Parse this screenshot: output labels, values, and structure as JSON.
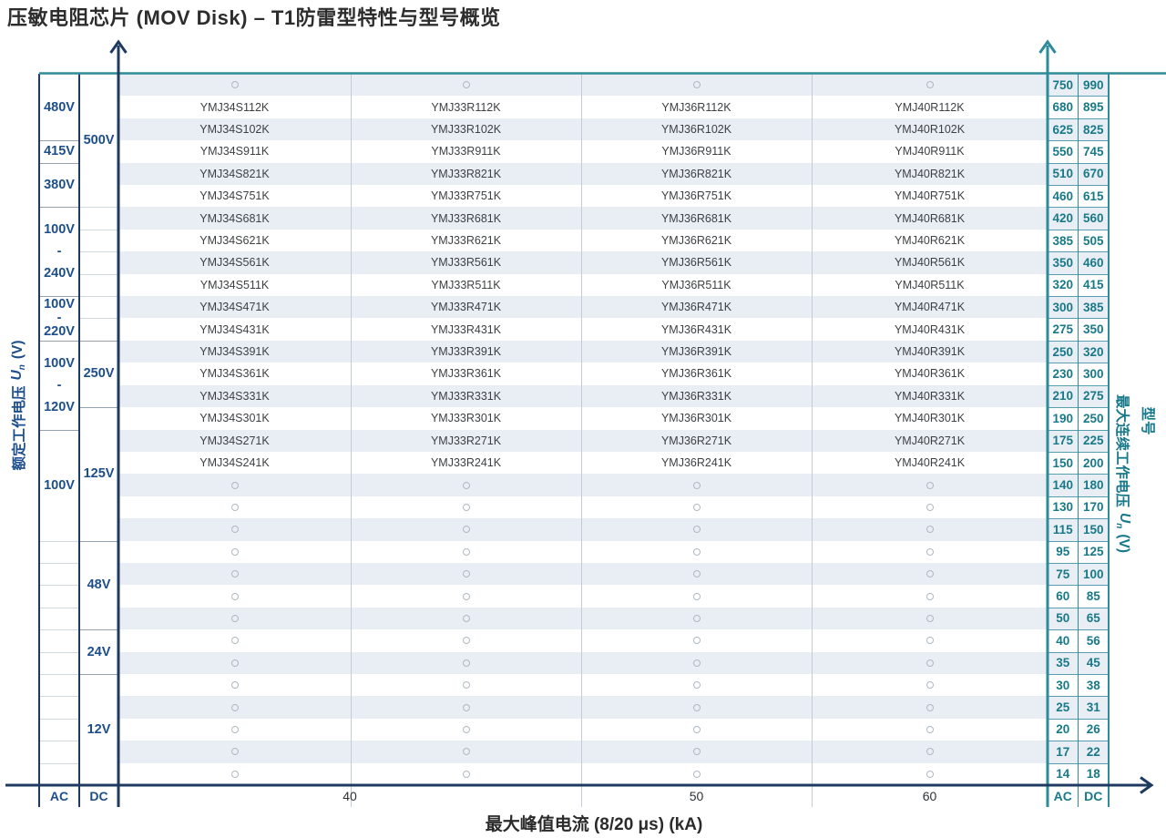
{
  "chart_data": {
    "type": "table",
    "title": "压敏电阻芯片 (MOV Disk) – T1防雷型特性与型号概览",
    "model_label": "型号",
    "left_axis_label": {
      "cn": "额定工作电压",
      "sym": "U",
      "sub": "n",
      "unit": "(V)"
    },
    "right_axis_label": {
      "cn": "最大连续工作电压",
      "sym": "U",
      "sub": "n",
      "unit": "(V)"
    },
    "x_axis": {
      "label": "最大峰值电流 (8/20 μs) (kA)",
      "ticks": [
        {
          "label": "40",
          "cols": [
            0,
            1
          ]
        },
        {
          "label": "50",
          "cols": [
            2,
            2
          ]
        },
        {
          "label": "60",
          "cols": [
            3,
            3
          ]
        }
      ]
    },
    "footer": {
      "ac": "AC",
      "dc": "DC"
    },
    "columns": [
      {
        "prefix": "YMJ34S",
        "peak_kA": 40
      },
      {
        "prefix": "YMJ33R",
        "peak_kA": 40
      },
      {
        "prefix": "YMJ36R",
        "peak_kA": 50
      },
      {
        "prefix": "YMJ40R",
        "peak_kA": 60
      }
    ],
    "left_axis": {
      "ac_cells": [
        {
          "lines": [
            "480V"
          ],
          "from": 0,
          "to": 2
        },
        {
          "lines": [
            "415V"
          ],
          "from": 3,
          "to": 3
        },
        {
          "lines": [
            "380V"
          ],
          "from": 4,
          "to": 5
        },
        {
          "lines": [
            "100V",
            "-",
            "240V"
          ],
          "from": 6,
          "to": 9
        },
        {
          "lines": [
            "100V",
            "-",
            "220V"
          ],
          "from": 10,
          "to": 11
        },
        {
          "lines": [
            "100V",
            "-",
            "120V"
          ],
          "from": 12,
          "to": 15
        },
        {
          "lines": [
            "100V"
          ],
          "from": 16,
          "to": 20
        },
        {
          "lines": [],
          "from": 21,
          "to": 21
        },
        {
          "lines": [],
          "from": 22,
          "to": 22
        },
        {
          "lines": [],
          "from": 23,
          "to": 23
        },
        {
          "lines": [],
          "from": 24,
          "to": 24
        },
        {
          "lines": [],
          "from": 25,
          "to": 25
        },
        {
          "lines": [],
          "from": 26,
          "to": 26
        },
        {
          "lines": [],
          "from": 27,
          "to": 27
        },
        {
          "lines": [],
          "from": 28,
          "to": 28
        },
        {
          "lines": [],
          "from": 29,
          "to": 29
        },
        {
          "lines": [],
          "from": 30,
          "to": 30
        },
        {
          "lines": [],
          "from": 31,
          "to": 31
        }
      ],
      "dc_cells": [
        {
          "lines": [
            "500V"
          ],
          "from": 0,
          "to": 5
        },
        {
          "lines": [],
          "from": 6,
          "to": 6
        },
        {
          "lines": [],
          "from": 7,
          "to": 7
        },
        {
          "lines": [],
          "from": 8,
          "to": 8
        },
        {
          "lines": [],
          "from": 9,
          "to": 9
        },
        {
          "lines": [],
          "from": 10,
          "to": 10
        },
        {
          "lines": [],
          "from": 11,
          "to": 11
        },
        {
          "lines": [
            "250V"
          ],
          "from": 12,
          "to": 14
        },
        {
          "lines": [
            "125V"
          ],
          "from": 15,
          "to": 20
        },
        {
          "lines": [
            "48V"
          ],
          "from": 21,
          "to": 24
        },
        {
          "lines": [
            "24V"
          ],
          "from": 25,
          "to": 26
        },
        {
          "lines": [
            "12V"
          ],
          "from": 27,
          "to": 31
        }
      ]
    },
    "rows": [
      {
        "ac": "750",
        "dc": "990",
        "parts": null
      },
      {
        "ac": "680",
        "dc": "895",
        "parts": [
          "YMJ34S112K",
          "YMJ33R112K",
          "YMJ36R112K",
          "YMJ40R112K"
        ]
      },
      {
        "ac": "625",
        "dc": "825",
        "parts": [
          "YMJ34S102K",
          "YMJ33R102K",
          "YMJ36R102K",
          "YMJ40R102K"
        ]
      },
      {
        "ac": "550",
        "dc": "745",
        "parts": [
          "YMJ34S911K",
          "YMJ33R911K",
          "YMJ36R911K",
          "YMJ40R911K"
        ]
      },
      {
        "ac": "510",
        "dc": "670",
        "parts": [
          "YMJ34S821K",
          "YMJ33R821K",
          "YMJ36R821K",
          "YMJ40R821K"
        ]
      },
      {
        "ac": "460",
        "dc": "615",
        "parts": [
          "YMJ34S751K",
          "YMJ33R751K",
          "YMJ36R751K",
          "YMJ40R751K"
        ]
      },
      {
        "ac": "420",
        "dc": "560",
        "parts": [
          "YMJ34S681K",
          "YMJ33R681K",
          "YMJ36R681K",
          "YMJ40R681K"
        ]
      },
      {
        "ac": "385",
        "dc": "505",
        "parts": [
          "YMJ34S621K",
          "YMJ33R621K",
          "YMJ36R621K",
          "YMJ40R621K"
        ]
      },
      {
        "ac": "350",
        "dc": "460",
        "parts": [
          "YMJ34S561K",
          "YMJ33R561K",
          "YMJ36R561K",
          "YMJ40R561K"
        ]
      },
      {
        "ac": "320",
        "dc": "415",
        "parts": [
          "YMJ34S511K",
          "YMJ33R511K",
          "YMJ36R511K",
          "YMJ40R511K"
        ]
      },
      {
        "ac": "300",
        "dc": "385",
        "parts": [
          "YMJ34S471K",
          "YMJ33R471K",
          "YMJ36R471K",
          "YMJ40R471K"
        ]
      },
      {
        "ac": "275",
        "dc": "350",
        "parts": [
          "YMJ34S431K",
          "YMJ33R431K",
          "YMJ36R431K",
          "YMJ40R431K"
        ]
      },
      {
        "ac": "250",
        "dc": "320",
        "parts": [
          "YMJ34S391K",
          "YMJ33R391K",
          "YMJ36R391K",
          "YMJ40R391K"
        ]
      },
      {
        "ac": "230",
        "dc": "300",
        "parts": [
          "YMJ34S361K",
          "YMJ33R361K",
          "YMJ36R361K",
          "YMJ40R361K"
        ]
      },
      {
        "ac": "210",
        "dc": "275",
        "parts": [
          "YMJ34S331K",
          "YMJ33R331K",
          "YMJ36R331K",
          "YMJ40R331K"
        ]
      },
      {
        "ac": "190",
        "dc": "250",
        "parts": [
          "YMJ34S301K",
          "YMJ33R301K",
          "YMJ36R301K",
          "YMJ40R301K"
        ]
      },
      {
        "ac": "175",
        "dc": "225",
        "parts": [
          "YMJ34S271K",
          "YMJ33R271K",
          "YMJ36R271K",
          "YMJ40R271K"
        ]
      },
      {
        "ac": "150",
        "dc": "200",
        "parts": [
          "YMJ34S241K",
          "YMJ33R241K",
          "YMJ36R241K",
          "YMJ40R241K"
        ]
      },
      {
        "ac": "140",
        "dc": "180",
        "parts": null
      },
      {
        "ac": "130",
        "dc": "170",
        "parts": null
      },
      {
        "ac": "115",
        "dc": "150",
        "parts": null
      },
      {
        "ac": "95",
        "dc": "125",
        "parts": null
      },
      {
        "ac": "75",
        "dc": "100",
        "parts": null
      },
      {
        "ac": "60",
        "dc": "85",
        "parts": null
      },
      {
        "ac": "50",
        "dc": "65",
        "parts": null
      },
      {
        "ac": "40",
        "dc": "56",
        "parts": null
      },
      {
        "ac": "35",
        "dc": "45",
        "parts": null
      },
      {
        "ac": "30",
        "dc": "38",
        "parts": null
      },
      {
        "ac": "25",
        "dc": "31",
        "parts": null
      },
      {
        "ac": "20",
        "dc": "26",
        "parts": null
      },
      {
        "ac": "17",
        "dc": "22",
        "parts": null
      },
      {
        "ac": "14",
        "dc": "18",
        "parts": null
      }
    ],
    "colors": {
      "navy_text": "#1d4e8c",
      "navy_line": "#1e3a5f",
      "teal_text": "#17798a",
      "teal_line": "#2e8c9a",
      "row_stripe": "#e9eef4"
    }
  }
}
